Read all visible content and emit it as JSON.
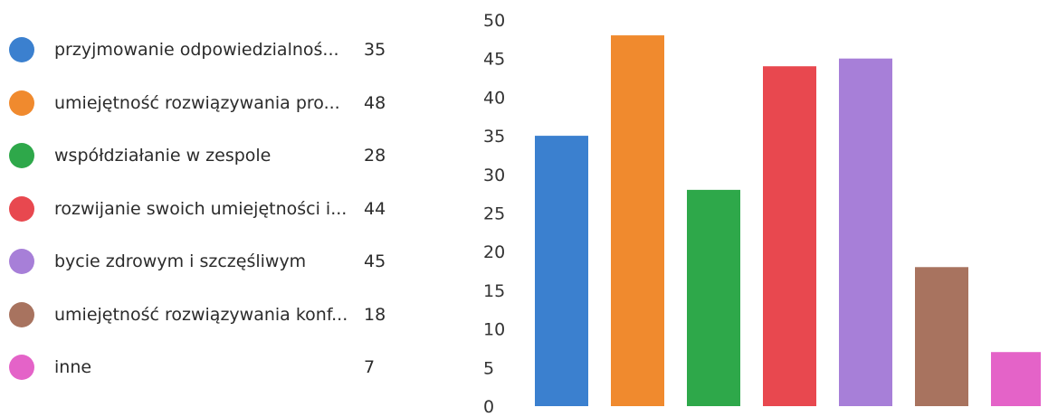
{
  "chart_data": {
    "type": "bar",
    "categories": [
      "przyjmowanie odpowiedzialnoś...",
      "umiejętność rozwiązywania pro...",
      "współdziałanie w zespole",
      "rozwijanie swoich umiejętności i...",
      "bycie zdrowym i szczęśliwym",
      "umiejętność rozwiązywania konf...",
      "inne"
    ],
    "values": [
      35,
      48,
      28,
      44,
      45,
      18,
      7
    ],
    "value_labels": [
      "35",
      "48",
      "28",
      "44",
      "45",
      "18",
      "7"
    ],
    "colors": [
      "#3b80cf",
      "#f08a2e",
      "#2ea84a",
      "#e8484f",
      "#a77fd8",
      "#a8735f",
      "#e463c8"
    ],
    "ylim": [
      0,
      50
    ],
    "yticks": [
      0,
      5,
      10,
      15,
      20,
      25,
      30,
      35,
      40,
      45,
      50
    ],
    "ytick_labels": [
      "0",
      "5",
      "10",
      "15",
      "20",
      "25",
      "30",
      "35",
      "40",
      "45",
      "50"
    ],
    "grid": false,
    "legend_position": "left"
  }
}
